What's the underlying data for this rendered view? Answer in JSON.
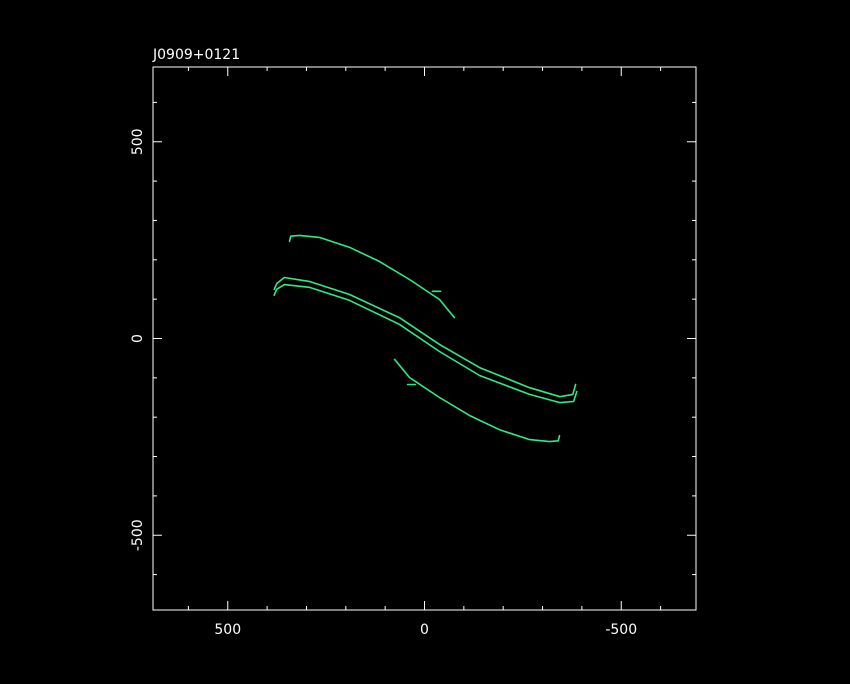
{
  "chart_data": {
    "type": "line",
    "title": "J0909+0121",
    "xlim": [
      690,
      -690
    ],
    "ylim": [
      -690,
      690
    ],
    "xticks": [
      500,
      0,
      -500
    ],
    "yticks": [
      500,
      0,
      -500
    ],
    "xminorticks": [
      600,
      400,
      300,
      200,
      100,
      -100,
      -200,
      -300,
      -400,
      -600
    ],
    "yminorticks": [
      600,
      400,
      300,
      200,
      100,
      -100,
      -200,
      -300,
      -400,
      -600
    ],
    "series": [
      {
        "color": "#33e884",
        "x": [
          343,
          340,
          318,
          267,
          191,
          115,
          38,
          -38,
          -76
        ],
        "values": [
          247,
          260,
          262,
          257,
          232,
          196,
          150,
          99,
          53
        ]
      },
      {
        "color": "#33e884",
        "x": [
          -343,
          -340,
          -318,
          -267,
          -191,
          -115,
          -38,
          38,
          76
        ],
        "values": [
          -247,
          -260,
          -262,
          -257,
          -232,
          -196,
          -150,
          -99,
          -53
        ]
      },
      {
        "color": "#33e884",
        "x": [
          382,
          375,
          356,
          293,
          191,
          64,
          -38,
          -140,
          -267,
          -344,
          -377,
          -384
        ],
        "values": [
          125,
          140,
          155,
          145,
          112,
          53,
          -15,
          -74,
          -125,
          -148,
          -142,
          -117
        ]
      },
      {
        "color": "#33e884",
        "x": [
          382,
          376,
          356,
          293,
          191,
          64,
          -38,
          -140,
          -267,
          -344,
          -379,
          -387
        ],
        "values": [
          110,
          125,
          137,
          130,
          97,
          36,
          -33,
          -94,
          -142,
          -163,
          -160,
          -135
        ]
      },
      {
        "color": "#33e884",
        "x": [
          -20,
          -41
        ],
        "values": [
          120,
          120
        ]
      },
      {
        "color": "#33e884",
        "x": [
          43,
          23
        ],
        "values": [
          -117,
          -117
        ]
      }
    ]
  }
}
